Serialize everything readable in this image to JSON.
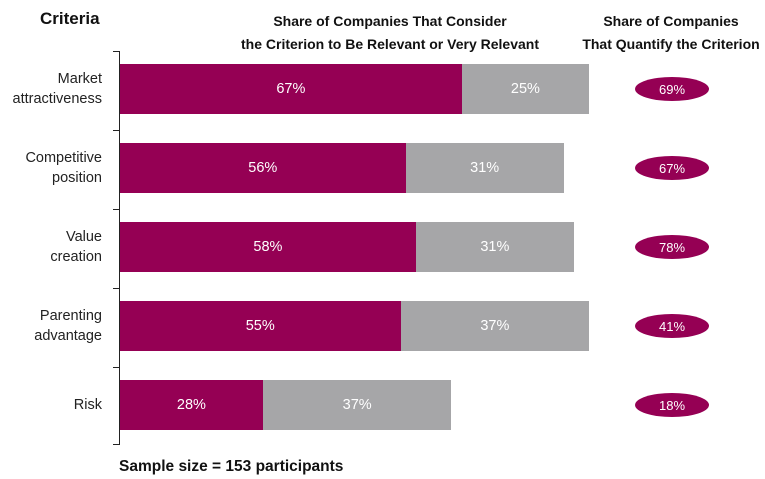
{
  "header": {
    "criteria": "Criteria",
    "main_line1": "Share of Companies That Consider",
    "main_line2": "the Criterion to Be Relevant or Very Relevant",
    "quant_line1": "Share of Companies",
    "quant_line2": "That Quantify the Criterion"
  },
  "footer": "Sample size = 153 participants",
  "colors": {
    "relevant": "#950054",
    "very_relevant": "#a6a6a8",
    "quantify": "#950054"
  },
  "chart_data": {
    "type": "bar",
    "orientation": "horizontal",
    "stacked": true,
    "categories": [
      [
        "Market",
        "attractiveness"
      ],
      [
        "Competitive",
        "position"
      ],
      [
        "Value",
        "creation"
      ],
      [
        "Parenting",
        "advantage"
      ],
      [
        "Risk"
      ]
    ],
    "series": [
      {
        "values": [
          67,
          56,
          58,
          55,
          28
        ],
        "labels": [
          "67%",
          "56%",
          "58%",
          "55%",
          "28%"
        ]
      },
      {
        "values": [
          25,
          31,
          31,
          37,
          37
        ],
        "labels": [
          "25%",
          "31%",
          "31%",
          "37%",
          "37%"
        ]
      }
    ],
    "quantify": {
      "values": [
        69,
        67,
        78,
        41,
        18
      ],
      "labels": [
        "69%",
        "67%",
        "78%",
        "41%",
        "18%"
      ]
    },
    "xlim": [
      0,
      100
    ]
  }
}
